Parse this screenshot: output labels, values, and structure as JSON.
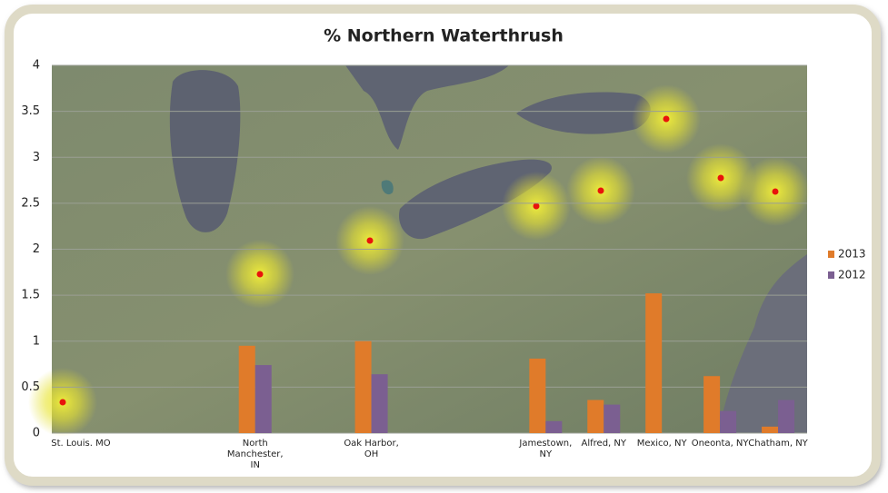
{
  "chart_data": {
    "type": "bar",
    "title": "% Northern Waterthrush",
    "categories": [
      "St. Louis. MO",
      null,
      null,
      "North Manchester, IN",
      null,
      "Oak Harbor, OH",
      null,
      null,
      "Jamestown, NY",
      "Alfred, NY",
      "Mexico, NY",
      "Oneonta, NY",
      "Chatham, NY"
    ],
    "series": [
      {
        "name": "2013",
        "color": "#e07b2a",
        "values": [
          null,
          null,
          null,
          0.95,
          null,
          1.0,
          null,
          null,
          0.81,
          0.36,
          1.52,
          0.62,
          0.07
        ]
      },
      {
        "name": "2012",
        "color": "#7b5f91",
        "values": [
          null,
          null,
          null,
          0.74,
          null,
          0.64,
          null,
          null,
          0.13,
          0.31,
          null,
          0.24,
          0.36
        ]
      }
    ],
    "ylim": [
      0,
      4
    ],
    "yticks": [
      0,
      0.5,
      1,
      1.5,
      2,
      2.5,
      3,
      3.5,
      4
    ],
    "grid": true,
    "legend": "right"
  }
}
